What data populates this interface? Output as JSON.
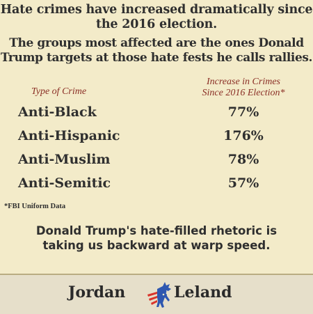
{
  "headline": {
    "line1": "Hate crimes have increased dramatically since",
    "line2": "the 2016 election.",
    "line3": "The groups most affected are the ones Donald",
    "line4": "Trump targets at those hate fests he calls rallies."
  },
  "table": {
    "col_type": "Type of Crime",
    "col_increase_line1": "Increase in Crimes",
    "col_increase_line2": "Since 2016 Election*",
    "rows": [
      {
        "type": "Anti-Black",
        "increase": "77%"
      },
      {
        "type": "Anti-Hispanic",
        "increase": "176%"
      },
      {
        "type": "Anti-Muslim",
        "increase": "78%"
      },
      {
        "type": "Anti-Semitic",
        "increase": "57%"
      }
    ]
  },
  "footnote": "*FBI Uniform Data",
  "closing": {
    "line1": "Donald Trump's hate-filled rhetoric is",
    "line2": "taking us backward at warp speed."
  },
  "footer": {
    "brand_left": "Jordan",
    "brand_right": "Leland",
    "logo_icon": "democratic-donkey-logo"
  },
  "colors": {
    "background": "#f3ebc9",
    "accent": "#8a2e25",
    "logo_red": "#d9342b",
    "logo_blue": "#2e57b0"
  }
}
